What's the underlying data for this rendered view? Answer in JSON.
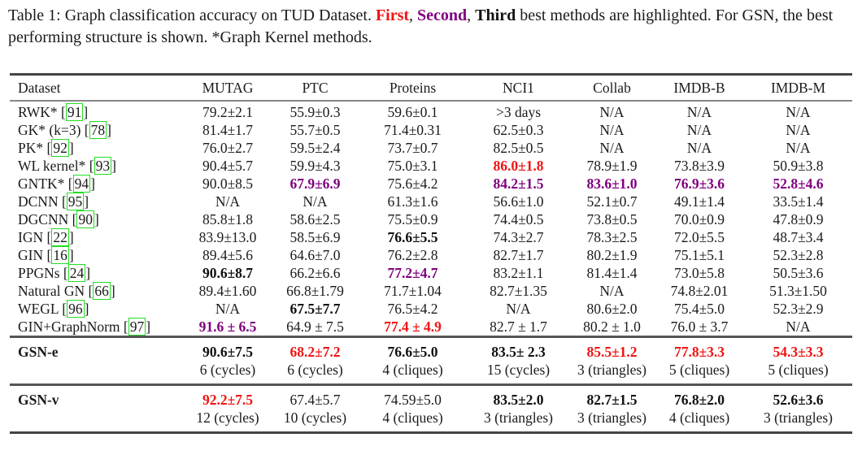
{
  "caption": {
    "prefix": "Table 1: Graph classification accuracy on TUD Dataset. ",
    "first": "First",
    "sep1": ", ",
    "second": "Second",
    "sep2": ", ",
    "third": "Third",
    "suffix": " best methods are highlighted. For GSN, the best performing structure is shown. *Graph Kernel methods."
  },
  "colors": {
    "first": "#f01414",
    "second": "#800080",
    "ref_box": "#22dd22"
  },
  "headers": [
    "Dataset",
    "MUTAG",
    "PTC",
    "Proteins",
    "NCI1",
    "Collab",
    "IMDB-B",
    "IMDB-M"
  ],
  "rows": [
    {
      "name": "RWK* [",
      "ref": "91",
      "cells": [
        {
          "v": "79.2±2.1"
        },
        {
          "v": "55.9±0.3"
        },
        {
          "v": "59.6±0.1"
        },
        {
          "v": ">3 days"
        },
        {
          "v": "N/A"
        },
        {
          "v": "N/A"
        },
        {
          "v": "N/A"
        }
      ]
    },
    {
      "name": "GK* (k=3) [",
      "ref": "78",
      "cells": [
        {
          "v": "81.4±1.7"
        },
        {
          "v": "55.7±0.5"
        },
        {
          "v": "71.4±0.31"
        },
        {
          "v": "62.5±0.3"
        },
        {
          "v": "N/A"
        },
        {
          "v": "N/A"
        },
        {
          "v": "N/A"
        }
      ]
    },
    {
      "name": "PK* [",
      "ref": "92",
      "cells": [
        {
          "v": "76.0±2.7"
        },
        {
          "v": "59.5±2.4"
        },
        {
          "v": "73.7±0.7"
        },
        {
          "v": "82.5±0.5"
        },
        {
          "v": "N/A"
        },
        {
          "v": "N/A"
        },
        {
          "v": "N/A"
        }
      ]
    },
    {
      "name": "WL kernel* [",
      "ref": "93",
      "cells": [
        {
          "v": "90.4±5.7"
        },
        {
          "v": "59.9±4.3"
        },
        {
          "v": "75.0±3.1"
        },
        {
          "v": "86.0±1.8",
          "s": "first"
        },
        {
          "v": "78.9±1.9"
        },
        {
          "v": "73.8±3.9"
        },
        {
          "v": "50.9±3.8"
        }
      ]
    },
    {
      "name": "GNTK* [",
      "ref": "94",
      "cells": [
        {
          "v": "90.0±8.5"
        },
        {
          "v": "67.9±6.9",
          "s": "second"
        },
        {
          "v": "75.6±4.2"
        },
        {
          "v": "84.2±1.5",
          "s": "second"
        },
        {
          "v": "83.6±1.0",
          "s": "second"
        },
        {
          "v": "76.9±3.6",
          "s": "second"
        },
        {
          "v": "52.8±4.6",
          "s": "second"
        }
      ]
    },
    {
      "name": "DCNN [",
      "ref": "95",
      "cells": [
        {
          "v": "N/A"
        },
        {
          "v": "N/A"
        },
        {
          "v": "61.3±1.6"
        },
        {
          "v": "56.6±1.0"
        },
        {
          "v": "52.1±0.7"
        },
        {
          "v": "49.1±1.4"
        },
        {
          "v": "33.5±1.4"
        }
      ]
    },
    {
      "name": "DGCNN [",
      "ref": "90",
      "cells": [
        {
          "v": "85.8±1.8"
        },
        {
          "v": "58.6±2.5"
        },
        {
          "v": "75.5±0.9"
        },
        {
          "v": "74.4±0.5"
        },
        {
          "v": "73.8±0.5"
        },
        {
          "v": "70.0±0.9"
        },
        {
          "v": "47.8±0.9"
        }
      ]
    },
    {
      "name": "IGN [",
      "ref": "22",
      "cells": [
        {
          "v": "83.9±13.0"
        },
        {
          "v": "58.5±6.9"
        },
        {
          "v": "76.6±5.5",
          "s": "third"
        },
        {
          "v": "74.3±2.7"
        },
        {
          "v": "78.3±2.5"
        },
        {
          "v": "72.0±5.5"
        },
        {
          "v": "48.7±3.4"
        }
      ]
    },
    {
      "name": "GIN [",
      "ref": "16",
      "cells": [
        {
          "v": "89.4±5.6"
        },
        {
          "v": "64.6±7.0"
        },
        {
          "v": "76.2±2.8"
        },
        {
          "v": "82.7±1.7"
        },
        {
          "v": "80.2±1.9"
        },
        {
          "v": "75.1±5.1"
        },
        {
          "v": "52.3±2.8"
        }
      ]
    },
    {
      "name": "PPGNs [",
      "ref": "24",
      "cells": [
        {
          "v": "90.6±8.7",
          "s": "third"
        },
        {
          "v": "66.2±6.6"
        },
        {
          "v": "77.2±4.7",
          "s": "second"
        },
        {
          "v": "83.2±1.1"
        },
        {
          "v": "81.4±1.4"
        },
        {
          "v": "73.0±5.8"
        },
        {
          "v": "50.5±3.6"
        }
      ]
    },
    {
      "name": "Natural GN [",
      "ref": "66",
      "cells": [
        {
          "v": "89.4±1.60"
        },
        {
          "v": "66.8±1.79"
        },
        {
          "v": "71.7±1.04"
        },
        {
          "v": "82.7±1.35"
        },
        {
          "v": "N/A"
        },
        {
          "v": "74.8±2.01"
        },
        {
          "v": "51.3±1.50"
        }
      ]
    },
    {
      "name": "WEGL [",
      "ref": "96",
      "cells": [
        {
          "v": "N/A"
        },
        {
          "v": "67.5±7.7",
          "s": "third"
        },
        {
          "v": "76.5±4.2"
        },
        {
          "v": "N/A"
        },
        {
          "v": "80.6±2.0"
        },
        {
          "v": "75.4±5.0"
        },
        {
          "v": "52.3±2.9"
        }
      ]
    },
    {
      "name": "GIN+GraphNorm [",
      "ref": "97",
      "cells": [
        {
          "v": "91.6 ± 6.5",
          "s": "second"
        },
        {
          "v": "64.9 ± 7.5"
        },
        {
          "v": "77.4 ± 4.9",
          "s": "first"
        },
        {
          "v": "82.7 ± 1.7"
        },
        {
          "v": "80.2 ± 1.0"
        },
        {
          "v": "76.0 ± 3.7"
        },
        {
          "v": "N/A"
        }
      ]
    }
  ],
  "gsn": [
    {
      "name": "GSN-e",
      "cells": [
        {
          "v": "90.6±7.5",
          "s": "third"
        },
        {
          "v": "68.2±7.2",
          "s": "first"
        },
        {
          "v": "76.6±5.0",
          "s": "third"
        },
        {
          "v": "83.5± 2.3",
          "s": "third"
        },
        {
          "v": "85.5±1.2",
          "s": "first"
        },
        {
          "v": "77.8±3.3",
          "s": "first"
        },
        {
          "v": "54.3±3.3",
          "s": "first"
        }
      ],
      "structures": [
        "6 (cycles)",
        "6 (cycles)",
        "4 (cliques)",
        "15 (cycles)",
        "3 (triangles)",
        "5 (cliques)",
        "5 (cliques)"
      ]
    },
    {
      "name": "GSN-v",
      "cells": [
        {
          "v": "92.2±7.5",
          "s": "first"
        },
        {
          "v": "67.4±5.7"
        },
        {
          "v": "74.59±5.0"
        },
        {
          "v": "83.5±2.0",
          "s": "third"
        },
        {
          "v": "82.7±1.5",
          "s": "third"
        },
        {
          "v": "76.8±2.0",
          "s": "third"
        },
        {
          "v": "52.6±3.6",
          "s": "third"
        }
      ],
      "structures": [
        "12 (cycles)",
        "10 (cycles)",
        "4 (cliques)",
        "3 (triangles)",
        "3 (triangles)",
        "4 (cliques)",
        "3 (triangles)"
      ]
    }
  ]
}
